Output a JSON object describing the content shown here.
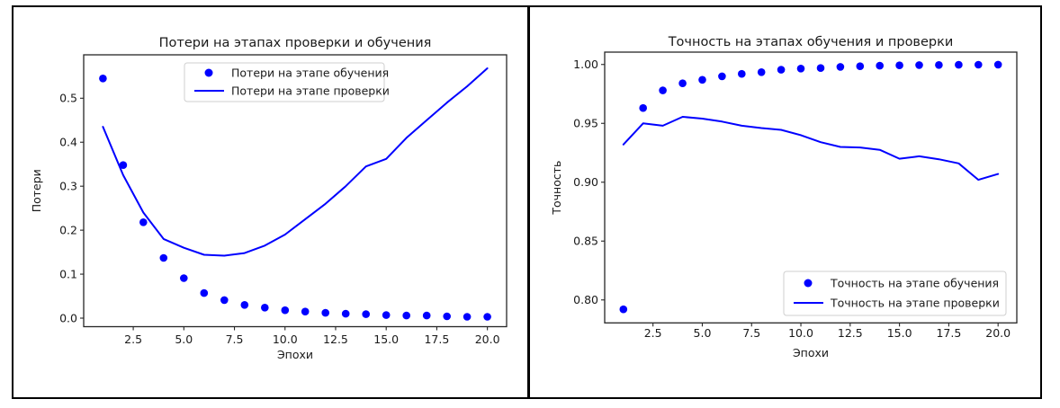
{
  "page": {
    "background": "#ffffff",
    "frame_color": "#000000",
    "plot_background": "#ffffff",
    "accent_color": "#0000ff",
    "text_color": "#1a1a1a"
  },
  "chart_data": [
    {
      "type": "scatter+line",
      "title": "Потери на этапах проверки и обучения",
      "xlabel": "Эпохи",
      "ylabel": "Потери",
      "x": [
        1,
        2,
        3,
        4,
        5,
        6,
        7,
        8,
        9,
        10,
        11,
        12,
        13,
        14,
        15,
        16,
        17,
        18,
        19,
        20
      ],
      "series": [
        {
          "name": "Потери на этапе обучения",
          "style": "scatter",
          "marker": "dot",
          "color": "#0000ff",
          "values": [
            0.545,
            0.348,
            0.218,
            0.137,
            0.091,
            0.057,
            0.041,
            0.03,
            0.024,
            0.018,
            0.015,
            0.012,
            0.01,
            0.009,
            0.007,
            0.006,
            0.006,
            0.004,
            0.003,
            0.003
          ]
        },
        {
          "name": "Потери на этапе проверки",
          "style": "line",
          "marker": "line",
          "color": "#0000ff",
          "values": [
            0.435,
            0.325,
            0.24,
            0.18,
            0.16,
            0.144,
            0.142,
            0.148,
            0.165,
            0.19,
            0.225,
            0.26,
            0.3,
            0.345,
            0.362,
            0.41,
            0.45,
            0.49,
            0.527,
            0.568
          ]
        }
      ],
      "xticks": {
        "values": [
          2.5,
          5.0,
          7.5,
          10.0,
          12.5,
          15.0,
          17.5,
          20.0
        ],
        "labels": [
          "2.5",
          "5.0",
          "7.5",
          "10.0",
          "12.5",
          "15.0",
          "17.5",
          "20.0"
        ]
      },
      "yticks": {
        "values": [
          0.0,
          0.1,
          0.2,
          0.3,
          0.4,
          0.5
        ],
        "labels": [
          "0.0",
          "0.1",
          "0.2",
          "0.3",
          "0.4",
          "0.5"
        ]
      },
      "xlim": [
        0.05,
        20.95
      ],
      "ylim": [
        -0.0194,
        0.5987
      ],
      "grid": false,
      "legend_position": "upper center"
    },
    {
      "type": "scatter+line",
      "title": "Точность на этапах обучения и проверки",
      "xlabel": "Эпохи",
      "ylabel": "Точность",
      "x": [
        1,
        2,
        3,
        4,
        5,
        6,
        7,
        8,
        9,
        10,
        11,
        12,
        13,
        14,
        15,
        16,
        17,
        18,
        19,
        20
      ],
      "series": [
        {
          "name": "Точность на этапе обучения",
          "style": "scatter",
          "marker": "dot",
          "color": "#0000ff",
          "values": [
            0.792,
            0.963,
            0.978,
            0.984,
            0.987,
            0.99,
            0.992,
            0.9935,
            0.9955,
            0.9965,
            0.997,
            0.998,
            0.9985,
            0.999,
            0.9993,
            0.9995,
            0.9996,
            0.9997,
            0.9998,
            0.9999
          ]
        },
        {
          "name": "Точность на этапе проверки",
          "style": "line",
          "marker": "line",
          "color": "#0000ff",
          "values": [
            0.932,
            0.95,
            0.948,
            0.9555,
            0.954,
            0.9515,
            0.948,
            0.946,
            0.9445,
            0.94,
            0.934,
            0.93,
            0.9295,
            0.9275,
            0.92,
            0.922,
            0.9195,
            0.916,
            0.902,
            0.907
          ]
        }
      ],
      "xticks": {
        "values": [
          2.5,
          5.0,
          7.5,
          10.0,
          12.5,
          15.0,
          17.5,
          20.0
        ],
        "labels": [
          "2.5",
          "5.0",
          "7.5",
          "10.0",
          "12.5",
          "15.0",
          "17.5",
          "20.0"
        ]
      },
      "yticks": {
        "values": [
          0.8,
          0.85,
          0.9,
          0.95,
          1.0
        ],
        "labels": [
          "0.80",
          "0.85",
          "0.90",
          "0.95",
          "1.00"
        ]
      },
      "xlim": [
        0.05,
        20.95
      ],
      "ylim": [
        0.7805,
        1.0105
      ],
      "grid": false,
      "legend_position": "lower right"
    }
  ]
}
